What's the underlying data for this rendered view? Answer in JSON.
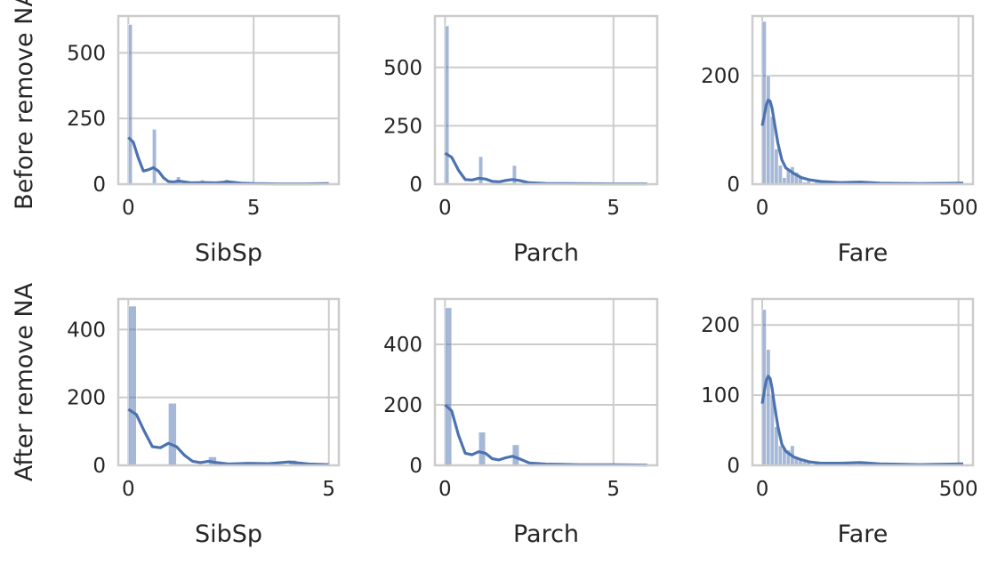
{
  "chart_data": [
    {
      "type": "histogram",
      "row_label": "Before remove NA",
      "xlabel": "SibSp",
      "xlim": [
        -0.4,
        8.4
      ],
      "ylim": [
        0,
        640
      ],
      "xticks": [
        0,
        5
      ],
      "yticks": [
        0,
        250,
        500
      ],
      "grid": true,
      "bins": [
        {
          "x0": 0.0,
          "x1": 0.16,
          "count": 608
        },
        {
          "x0": 0.96,
          "x1": 1.12,
          "count": 209
        },
        {
          "x0": 1.92,
          "x1": 2.08,
          "count": 28
        },
        {
          "x0": 2.88,
          "x1": 3.04,
          "count": 16
        },
        {
          "x0": 3.84,
          "x1": 4.0,
          "count": 18
        },
        {
          "x0": 4.8,
          "x1": 4.96,
          "count": 5
        },
        {
          "x0": 7.84,
          "x1": 8.0,
          "count": 7
        }
      ],
      "kde": {
        "x": [
          0,
          0.2,
          0.4,
          0.6,
          0.8,
          1.0,
          1.2,
          1.4,
          1.6,
          1.8,
          2.0,
          2.5,
          3.0,
          3.5,
          4.0,
          4.5,
          5.0,
          6.0,
          7.0,
          8.0
        ],
        "y": [
          178,
          160,
          100,
          50,
          55,
          63,
          50,
          25,
          10,
          8,
          12,
          5,
          6,
          5,
          9,
          4,
          2,
          1,
          1,
          2
        ]
      },
      "color": "#4c72b0"
    },
    {
      "type": "histogram",
      "row_label": "",
      "xlabel": "Parch",
      "xlim": [
        -0.3,
        6.3
      ],
      "ylim": [
        0,
        720
      ],
      "xticks": [
        0,
        5
      ],
      "yticks": [
        0,
        250,
        500
      ],
      "grid": true,
      "bins": [
        {
          "x0": 0.0,
          "x1": 0.12,
          "count": 678
        },
        {
          "x0": 1.0,
          "x1": 1.12,
          "count": 118
        },
        {
          "x0": 2.0,
          "x1": 2.12,
          "count": 80
        },
        {
          "x0": 3.0,
          "x1": 3.12,
          "count": 5
        },
        {
          "x0": 4.0,
          "x1": 4.12,
          "count": 4
        },
        {
          "x0": 5.0,
          "x1": 5.12,
          "count": 5
        },
        {
          "x0": 5.88,
          "x1": 6.0,
          "count": 1
        }
      ],
      "kde": {
        "x": [
          0,
          0.2,
          0.4,
          0.6,
          0.8,
          1.0,
          1.2,
          1.4,
          1.6,
          1.8,
          2.0,
          2.2,
          2.5,
          3.0,
          4.0,
          5.0,
          6.0
        ],
        "y": [
          133,
          115,
          60,
          20,
          18,
          25,
          22,
          12,
          10,
          16,
          20,
          16,
          6,
          3,
          2,
          1,
          1
        ]
      },
      "color": "#4c72b0"
    },
    {
      "type": "histogram",
      "row_label": "",
      "xlabel": "Fare",
      "xlim": [
        -25,
        537
      ],
      "ylim": [
        0,
        310
      ],
      "xticks": [
        0,
        500
      ],
      "yticks": [
        0,
        200
      ],
      "grid": true,
      "bins": [
        {
          "x0": 0,
          "x1": 10.25,
          "count": 300
        },
        {
          "x0": 10.25,
          "x1": 20.5,
          "count": 200
        },
        {
          "x0": 20.5,
          "x1": 30.75,
          "count": 125
        },
        {
          "x0": 30.75,
          "x1": 41.0,
          "count": 65
        },
        {
          "x0": 41.0,
          "x1": 51.25,
          "count": 35
        },
        {
          "x0": 51.25,
          "x1": 61.5,
          "count": 12
        },
        {
          "x0": 61.5,
          "x1": 71.75,
          "count": 28
        },
        {
          "x0": 71.75,
          "x1": 82.0,
          "count": 32
        },
        {
          "x0": 82.0,
          "x1": 92.25,
          "count": 22
        },
        {
          "x0": 92.25,
          "x1": 102.5,
          "count": 14
        },
        {
          "x0": 102.5,
          "x1": 112.75,
          "count": 4
        },
        {
          "x0": 112.75,
          "x1": 123.0,
          "count": 6
        },
        {
          "x0": 133.25,
          "x1": 143.5,
          "count": 4
        },
        {
          "x0": 143.5,
          "x1": 153.75,
          "count": 6
        },
        {
          "x0": 153.75,
          "x1": 164.0,
          "count": 3
        },
        {
          "x0": 205.0,
          "x1": 215.25,
          "count": 3
        },
        {
          "x0": 225.5,
          "x1": 235.75,
          "count": 4
        },
        {
          "x0": 246.0,
          "x1": 256.25,
          "count": 5
        },
        {
          "x0": 256.25,
          "x1": 266.5,
          "count": 6
        },
        {
          "x0": 502.0,
          "x1": 512.3,
          "count": 3
        }
      ],
      "kde": {
        "x": [
          0,
          5,
          10,
          15,
          20,
          25,
          30,
          40,
          50,
          60,
          80,
          100,
          120,
          150,
          200,
          250,
          300,
          400,
          512
        ],
        "y": [
          108,
          125,
          145,
          155,
          153,
          140,
          118,
          75,
          45,
          30,
          20,
          12,
          8,
          5,
          3,
          4,
          2,
          1,
          2
        ]
      },
      "color": "#4c72b0"
    },
    {
      "type": "histogram",
      "row_label": "After remove NA",
      "xlabel": "SibSp",
      "xlim": [
        -0.25,
        5.25
      ],
      "ylim": [
        0,
        490
      ],
      "xticks": [
        0,
        5
      ],
      "yticks": [
        0,
        200,
        400
      ],
      "grid": true,
      "bins": [
        {
          "x0": 0.0,
          "x1": 0.2,
          "count": 469
        },
        {
          "x0": 1.0,
          "x1": 1.2,
          "count": 183
        },
        {
          "x0": 2.0,
          "x1": 2.2,
          "count": 25
        },
        {
          "x0": 3.0,
          "x1": 3.2,
          "count": 5
        },
        {
          "x0": 4.0,
          "x1": 4.2,
          "count": 15
        },
        {
          "x0": 4.8,
          "x1": 5.0,
          "count": 5
        }
      ],
      "kde": {
        "x": [
          0,
          0.2,
          0.4,
          0.6,
          0.8,
          1.0,
          1.2,
          1.4,
          1.6,
          1.8,
          2.0,
          2.2,
          2.5,
          3.0,
          3.5,
          4.0,
          4.5,
          5.0
        ],
        "y": [
          165,
          150,
          100,
          55,
          52,
          65,
          55,
          30,
          12,
          8,
          12,
          8,
          4,
          6,
          5,
          10,
          4,
          2
        ]
      },
      "color": "#4c72b0"
    },
    {
      "type": "histogram",
      "row_label": "",
      "xlabel": "Parch",
      "xlim": [
        -0.3,
        6.3
      ],
      "ylim": [
        0,
        550
      ],
      "xticks": [
        0,
        5
      ],
      "yticks": [
        0,
        200,
        400
      ],
      "grid": true,
      "bins": [
        {
          "x0": 0.0,
          "x1": 0.2,
          "count": 521
        },
        {
          "x0": 1.0,
          "x1": 1.2,
          "count": 110
        },
        {
          "x0": 2.0,
          "x1": 2.2,
          "count": 68
        },
        {
          "x0": 3.0,
          "x1": 3.2,
          "count": 5
        },
        {
          "x0": 4.0,
          "x1": 4.2,
          "count": 4
        },
        {
          "x0": 5.0,
          "x1": 5.2,
          "count": 5
        },
        {
          "x0": 5.8,
          "x1": 6.0,
          "count": 1
        }
      ],
      "kde": {
        "x": [
          0,
          0.2,
          0.4,
          0.6,
          0.8,
          1.0,
          1.2,
          1.4,
          1.6,
          1.8,
          2.0,
          2.2,
          2.5,
          3.0,
          4.0,
          5.0,
          6.0
        ],
        "y": [
          200,
          180,
          100,
          40,
          35,
          45,
          40,
          22,
          18,
          25,
          30,
          22,
          8,
          4,
          2,
          2,
          1
        ]
      },
      "color": "#4c72b0"
    },
    {
      "type": "histogram",
      "row_label": "",
      "xlabel": "Fare",
      "xlim": [
        -25,
        537
      ],
      "ylim": [
        0,
        237
      ],
      "xticks": [
        0,
        500
      ],
      "yticks": [
        0,
        100,
        200
      ],
      "grid": true,
      "bins": [
        {
          "x0": 0,
          "x1": 10.25,
          "count": 222
        },
        {
          "x0": 10.25,
          "x1": 20.5,
          "count": 165
        },
        {
          "x0": 20.5,
          "x1": 30.75,
          "count": 100
        },
        {
          "x0": 30.75,
          "x1": 41.0,
          "count": 55
        },
        {
          "x0": 41.0,
          "x1": 51.25,
          "count": 28
        },
        {
          "x0": 51.25,
          "x1": 61.5,
          "count": 25
        },
        {
          "x0": 61.5,
          "x1": 71.75,
          "count": 22
        },
        {
          "x0": 71.75,
          "x1": 82.0,
          "count": 28
        },
        {
          "x0": 82.0,
          "x1": 92.25,
          "count": 12
        },
        {
          "x0": 92.25,
          "x1": 102.5,
          "count": 8
        },
        {
          "x0": 102.5,
          "x1": 112.75,
          "count": 5
        },
        {
          "x0": 112.75,
          "x1": 123.0,
          "count": 5
        },
        {
          "x0": 133.25,
          "x1": 143.5,
          "count": 4
        },
        {
          "x0": 143.5,
          "x1": 153.75,
          "count": 5
        },
        {
          "x0": 205.0,
          "x1": 215.25,
          "count": 3
        },
        {
          "x0": 225.5,
          "x1": 235.75,
          "count": 3
        },
        {
          "x0": 246.0,
          "x1": 256.25,
          "count": 4
        },
        {
          "x0": 256.25,
          "x1": 266.5,
          "count": 5
        },
        {
          "x0": 502.0,
          "x1": 512.3,
          "count": 3
        }
      ],
      "kde": {
        "x": [
          0,
          5,
          10,
          15,
          20,
          25,
          30,
          40,
          50,
          60,
          80,
          100,
          120,
          150,
          200,
          250,
          300,
          400,
          512
        ],
        "y": [
          88,
          105,
          120,
          127,
          124,
          110,
          90,
          55,
          30,
          20,
          12,
          8,
          5,
          3,
          3,
          4,
          2,
          1,
          2
        ]
      },
      "color": "#4c72b0"
    }
  ]
}
